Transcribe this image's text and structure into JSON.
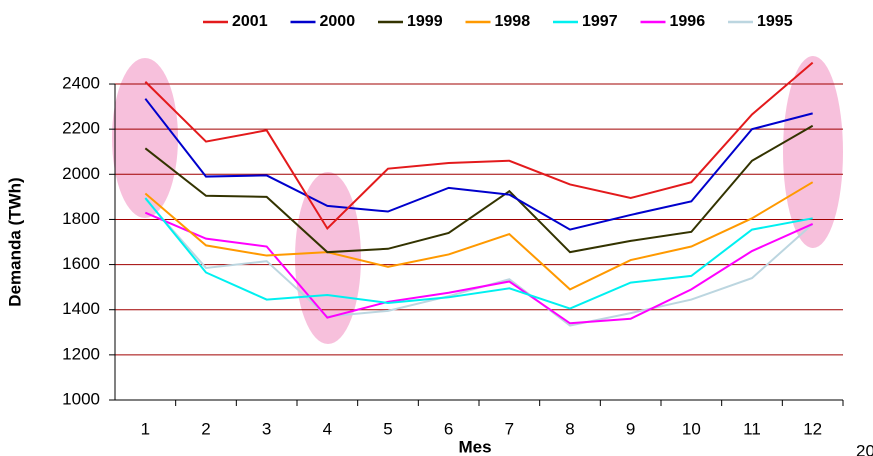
{
  "chart_data": {
    "type": "line",
    "x_label": "Mes",
    "y_label": "Demanda (TWh)",
    "note": "20",
    "categories": [
      "1",
      "2",
      "3",
      "4",
      "5",
      "6",
      "7",
      "8",
      "9",
      "10",
      "11",
      "12"
    ],
    "series": [
      {
        "name": "2001",
        "color": "#e31a1c",
        "values": [
          2410,
          2145,
          2195,
          1760,
          2025,
          2050,
          2060,
          1955,
          1895,
          1965,
          2265,
          2495
        ]
      },
      {
        "name": "2000",
        "color": "#0000cc",
        "values": [
          2335,
          1990,
          1995,
          1860,
          1835,
          1940,
          1910,
          1755,
          1820,
          1880,
          2200,
          2270
        ]
      },
      {
        "name": "1999",
        "color": "#333300",
        "values": [
          2115,
          1905,
          1900,
          1655,
          1670,
          1740,
          1925,
          1655,
          1705,
          1745,
          2060,
          2215
        ]
      },
      {
        "name": "1998",
        "color": "#ff9900",
        "values": [
          1915,
          1685,
          1640,
          1655,
          1590,
          1645,
          1735,
          1490,
          1620,
          1680,
          1805,
          1965
        ]
      },
      {
        "name": "1997",
        "color": "#00f0f0",
        "values": [
          1895,
          1565,
          1445,
          1465,
          1430,
          1455,
          1495,
          1405,
          1520,
          1550,
          1755,
          1805
        ]
      },
      {
        "name": "1996",
        "color": "#ff00ff",
        "values": [
          1830,
          1715,
          1680,
          1365,
          1435,
          1475,
          1525,
          1340,
          1360,
          1490,
          1660,
          1780
        ]
      },
      {
        "name": "1995",
        "color": "#bcd6e0",
        "values": [
          1890,
          1585,
          1615,
          1370,
          1395,
          1460,
          1535,
          1330,
          1385,
          1445,
          1540,
          1780
        ]
      }
    ],
    "ylim": [
      1000,
      2500
    ],
    "yticks": [
      1000,
      1200,
      1400,
      1600,
      1800,
      2000,
      2200,
      2400
    ],
    "grid": true
  }
}
